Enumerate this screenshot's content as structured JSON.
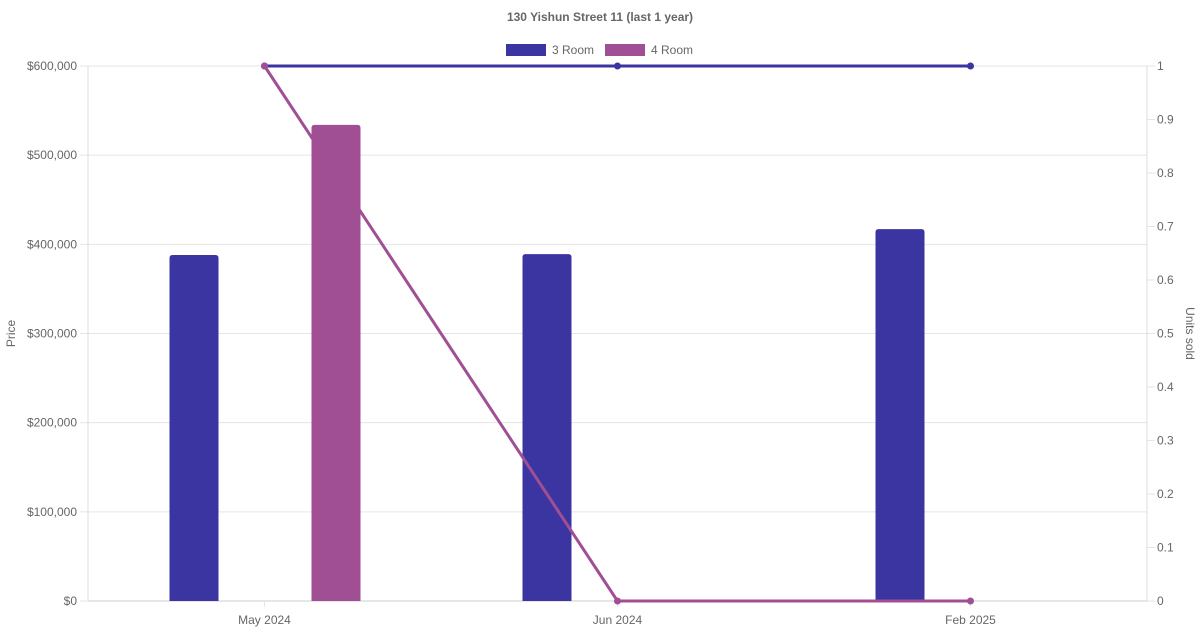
{
  "chart_data": {
    "type": "bar",
    "title": "130 Yishun Street 11 (last 1 year)",
    "categories": [
      "May 2024",
      "Jun 2024",
      "Feb 2025"
    ],
    "legend": {
      "position": "top-center",
      "entries": [
        {
          "label": "3 Room",
          "color": "#3b35a1"
        },
        {
          "label": "4 Room",
          "color": "#a04f94"
        }
      ]
    },
    "y_left": {
      "label": "Price",
      "range": [
        0,
        600000
      ],
      "ticks": [
        "$0",
        "$100,000",
        "$200,000",
        "$300,000",
        "$400,000",
        "$500,000",
        "$600,000"
      ]
    },
    "y_right": {
      "label": "Units sold",
      "range": [
        0,
        1
      ],
      "ticks": [
        "0",
        "0.1",
        "0.2",
        "0.3",
        "0.4",
        "0.5",
        "0.6",
        "0.7",
        "0.8",
        "0.9",
        "1"
      ]
    },
    "grid": true,
    "bar_series": [
      {
        "name": "3 Room",
        "color": "#3b35a1",
        "axis": "left",
        "values": [
          388000,
          389000,
          417000
        ]
      },
      {
        "name": "4 Room",
        "color": "#a04f94",
        "axis": "left",
        "values": [
          534000,
          null,
          null
        ]
      }
    ],
    "line_series": [
      {
        "name": "3 Room",
        "color": "#3b35a1",
        "axis": "right",
        "values": [
          1,
          1,
          1
        ]
      },
      {
        "name": "4 Room",
        "color": "#a04f94",
        "axis": "right",
        "values": [
          1,
          0,
          0
        ]
      }
    ]
  }
}
